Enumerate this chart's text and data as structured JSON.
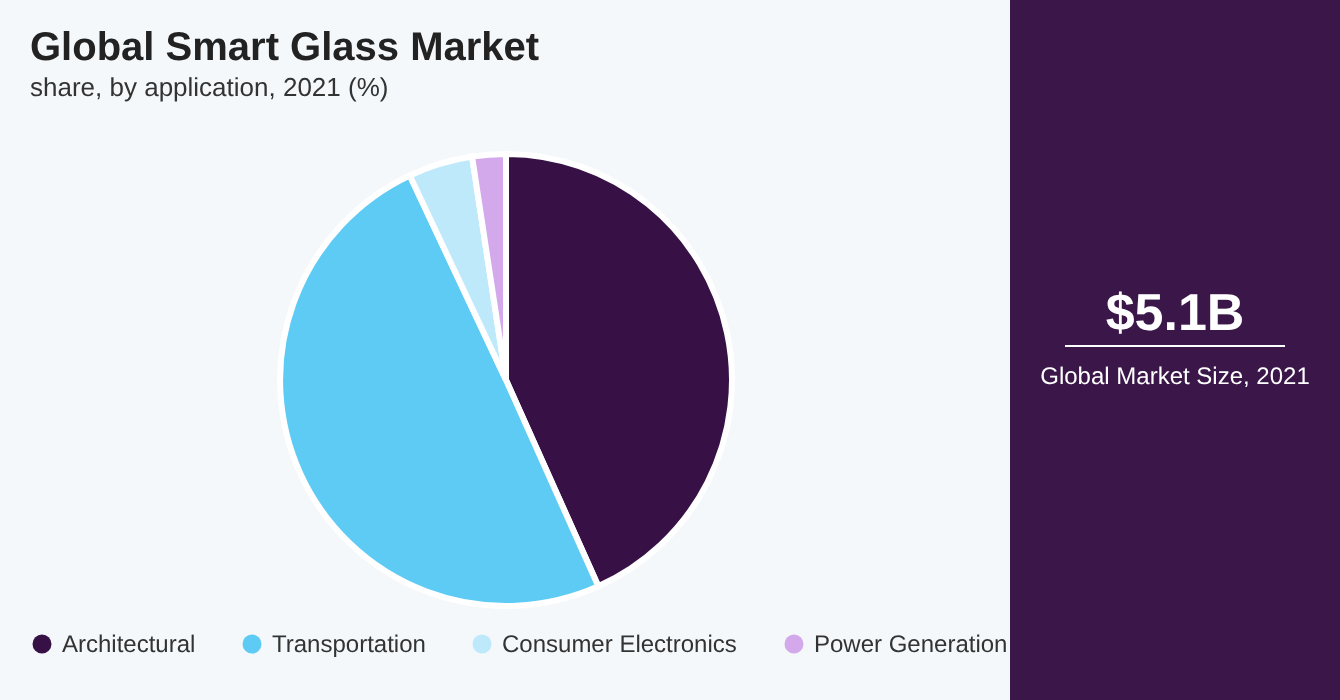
{
  "chart_data": {
    "type": "pie",
    "title": "Global Smart Glass Market",
    "subtitle": "share, by application, 2021 (%)",
    "categories": [
      "Architectural",
      "Transportation",
      "Consumer Electronics",
      "Power Generation"
    ],
    "values": [
      43.3,
      49.7,
      4.6,
      2.4
    ],
    "colors": [
      "#371146",
      "#5ecbf5",
      "#bde9fa",
      "#d4a9ec"
    ],
    "legend": "bottom",
    "annotations": [
      "$5.1B",
      "Global Market Size, 2021"
    ]
  }
}
